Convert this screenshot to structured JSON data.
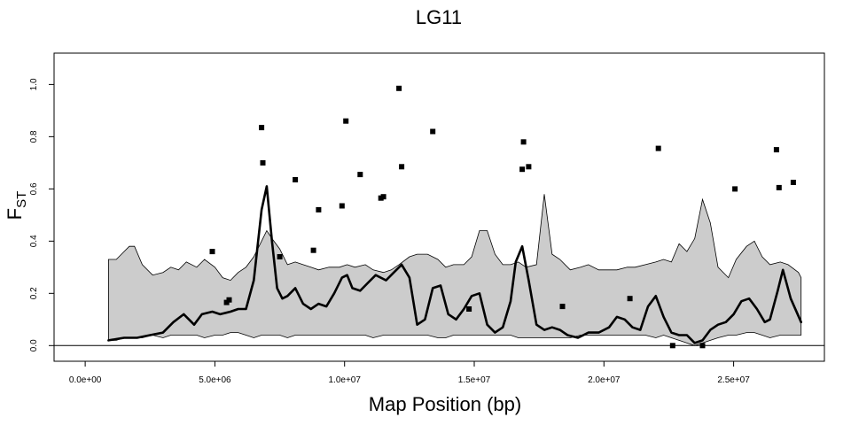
{
  "chart_data": {
    "type": "line",
    "title": "LG11",
    "xlabel": "Map Position (bp)",
    "ylabel_main": "F",
    "ylabel_sub": "ST",
    "xlim": [
      -1200000,
      28500000
    ],
    "ylim": [
      -0.06,
      1.12
    ],
    "x_ticks": [
      0,
      5000000,
      10000000,
      15000000,
      20000000,
      25000000
    ],
    "x_tick_labels": [
      "0.0e+00",
      "5.0e+06",
      "1.0e+07",
      "1.5e+07",
      "2.0e+07",
      "2.5e+07"
    ],
    "y_ticks": [
      0.0,
      0.2,
      0.4,
      0.6,
      0.8,
      1.0
    ],
    "y_tick_labels": [
      "0.0",
      "0.2",
      "0.4",
      "0.6",
      "0.8",
      "1.0"
    ],
    "reference_line_y": 0,
    "colors": {
      "band_fill": "#cccccc",
      "band_stroke": "#000000",
      "line": "#000000",
      "points": "#000000"
    },
    "confidence_band": {
      "x": [
        900000,
        1200000,
        1500000,
        1700000,
        1900000,
        2200000,
        2600000,
        3000000,
        3300000,
        3600000,
        3900000,
        4300000,
        4600000,
        5000000,
        5300000,
        5600000,
        5900000,
        6200000,
        6500000,
        6800000,
        7000000,
        7200000,
        7500000,
        7800000,
        8100000,
        8400000,
        8700000,
        9000000,
        9400000,
        9800000,
        10100000,
        10400000,
        10800000,
        11100000,
        11500000,
        11800000,
        12100000,
        12500000,
        12800000,
        13200000,
        13600000,
        13900000,
        14200000,
        14600000,
        14900000,
        15200000,
        15500000,
        15800000,
        16100000,
        16400000,
        16700000,
        17000000,
        17400000,
        17700000,
        18000000,
        18300000,
        18700000,
        19100000,
        19400000,
        19800000,
        20200000,
        20500000,
        20900000,
        21200000,
        21600000,
        22000000,
        22300000,
        22600000,
        22900000,
        23200000,
        23500000,
        23800000,
        24100000,
        24400000,
        24800000,
        25100000,
        25500000,
        25800000,
        26100000,
        26400000,
        26800000,
        27100000,
        27500000,
        27600000
      ],
      "upper": [
        0.33,
        0.33,
        0.36,
        0.38,
        0.38,
        0.31,
        0.27,
        0.28,
        0.3,
        0.29,
        0.32,
        0.3,
        0.33,
        0.3,
        0.26,
        0.25,
        0.28,
        0.3,
        0.34,
        0.4,
        0.44,
        0.41,
        0.37,
        0.31,
        0.32,
        0.31,
        0.3,
        0.29,
        0.3,
        0.3,
        0.31,
        0.3,
        0.31,
        0.29,
        0.28,
        0.29,
        0.31,
        0.34,
        0.35,
        0.35,
        0.33,
        0.3,
        0.31,
        0.31,
        0.34,
        0.44,
        0.44,
        0.35,
        0.31,
        0.31,
        0.32,
        0.3,
        0.31,
        0.58,
        0.35,
        0.33,
        0.29,
        0.3,
        0.31,
        0.29,
        0.29,
        0.29,
        0.3,
        0.3,
        0.31,
        0.32,
        0.33,
        0.32,
        0.39,
        0.36,
        0.41,
        0.56,
        0.47,
        0.3,
        0.26,
        0.33,
        0.38,
        0.4,
        0.34,
        0.31,
        0.32,
        0.31,
        0.28,
        0.26
      ],
      "lower": [
        0.02,
        0.02,
        0.03,
        0.03,
        0.03,
        0.03,
        0.04,
        0.03,
        0.04,
        0.04,
        0.04,
        0.04,
        0.03,
        0.04,
        0.04,
        0.05,
        0.05,
        0.04,
        0.03,
        0.04,
        0.04,
        0.04,
        0.04,
        0.03,
        0.04,
        0.04,
        0.04,
        0.04,
        0.04,
        0.04,
        0.04,
        0.04,
        0.04,
        0.03,
        0.04,
        0.04,
        0.04,
        0.04,
        0.04,
        0.04,
        0.03,
        0.03,
        0.04,
        0.04,
        0.04,
        0.04,
        0.04,
        0.04,
        0.04,
        0.04,
        0.03,
        0.03,
        0.03,
        0.03,
        0.03,
        0.03,
        0.03,
        0.04,
        0.04,
        0.04,
        0.04,
        0.04,
        0.04,
        0.04,
        0.04,
        0.03,
        0.04,
        0.03,
        0.02,
        0.01,
        0.0,
        0.01,
        0.02,
        0.03,
        0.04,
        0.04,
        0.05,
        0.05,
        0.04,
        0.03,
        0.04,
        0.04,
        0.04,
        0.04
      ]
    },
    "smoothed_line": {
      "x": [
        900000,
        1500000,
        2000000,
        2500000,
        3000000,
        3400000,
        3800000,
        4200000,
        4500000,
        4900000,
        5200000,
        5600000,
        5900000,
        6200000,
        6500000,
        6800000,
        7000000,
        7200000,
        7400000,
        7600000,
        7800000,
        8100000,
        8400000,
        8700000,
        9000000,
        9300000,
        9600000,
        9900000,
        10100000,
        10300000,
        10600000,
        10900000,
        11200000,
        11600000,
        11900000,
        12200000,
        12500000,
        12800000,
        13100000,
        13400000,
        13700000,
        14000000,
        14300000,
        14600000,
        14900000,
        15200000,
        15500000,
        15800000,
        16100000,
        16400000,
        16600000,
        16850000,
        17100000,
        17400000,
        17700000,
        18000000,
        18300000,
        18600000,
        19000000,
        19400000,
        19800000,
        20200000,
        20500000,
        20800000,
        21100000,
        21400000,
        21700000,
        22000000,
        22300000,
        22600000,
        22900000,
        23200000,
        23500000,
        23800000,
        24100000,
        24400000,
        24700000,
        25000000,
        25300000,
        25600000,
        25900000,
        26200000,
        26400000,
        26700000,
        26900000,
        27200000,
        27600000
      ],
      "y": [
        0.02,
        0.03,
        0.03,
        0.04,
        0.05,
        0.09,
        0.12,
        0.08,
        0.12,
        0.13,
        0.12,
        0.13,
        0.14,
        0.14,
        0.25,
        0.52,
        0.61,
        0.4,
        0.22,
        0.18,
        0.19,
        0.22,
        0.16,
        0.14,
        0.16,
        0.15,
        0.2,
        0.26,
        0.27,
        0.22,
        0.21,
        0.24,
        0.27,
        0.25,
        0.28,
        0.31,
        0.26,
        0.08,
        0.1,
        0.22,
        0.23,
        0.12,
        0.1,
        0.14,
        0.19,
        0.2,
        0.08,
        0.05,
        0.07,
        0.17,
        0.32,
        0.38,
        0.25,
        0.08,
        0.06,
        0.07,
        0.06,
        0.04,
        0.03,
        0.05,
        0.05,
        0.07,
        0.11,
        0.1,
        0.07,
        0.06,
        0.15,
        0.19,
        0.11,
        0.05,
        0.04,
        0.04,
        0.01,
        0.02,
        0.06,
        0.08,
        0.09,
        0.12,
        0.17,
        0.18,
        0.14,
        0.09,
        0.1,
        0.21,
        0.29,
        0.18,
        0.09
      ]
    },
    "points": [
      {
        "x": 4900000,
        "y": 0.36
      },
      {
        "x": 5450000,
        "y": 0.165
      },
      {
        "x": 5550000,
        "y": 0.175
      },
      {
        "x": 6800000,
        "y": 0.835
      },
      {
        "x": 6850000,
        "y": 0.7
      },
      {
        "x": 7500000,
        "y": 0.34
      },
      {
        "x": 8100000,
        "y": 0.635
      },
      {
        "x": 8800000,
        "y": 0.365
      },
      {
        "x": 9000000,
        "y": 0.52
      },
      {
        "x": 9900000,
        "y": 0.535
      },
      {
        "x": 10050000,
        "y": 0.86
      },
      {
        "x": 10600000,
        "y": 0.655
      },
      {
        "x": 11400000,
        "y": 0.565
      },
      {
        "x": 11500000,
        "y": 0.57
      },
      {
        "x": 12100000,
        "y": 0.985
      },
      {
        "x": 12200000,
        "y": 0.685
      },
      {
        "x": 13400000,
        "y": 0.82
      },
      {
        "x": 14800000,
        "y": 0.14
      },
      {
        "x": 16850000,
        "y": 0.675
      },
      {
        "x": 16900000,
        "y": 0.78
      },
      {
        "x": 17100000,
        "y": 0.685
      },
      {
        "x": 18400000,
        "y": 0.15
      },
      {
        "x": 21000000,
        "y": 0.18
      },
      {
        "x": 22100000,
        "y": 0.755
      },
      {
        "x": 22650000,
        "y": 0.0
      },
      {
        "x": 23800000,
        "y": 0.0
      },
      {
        "x": 25050000,
        "y": 0.6
      },
      {
        "x": 26650000,
        "y": 0.75
      },
      {
        "x": 26750000,
        "y": 0.605
      },
      {
        "x": 27300000,
        "y": 0.625
      }
    ]
  }
}
